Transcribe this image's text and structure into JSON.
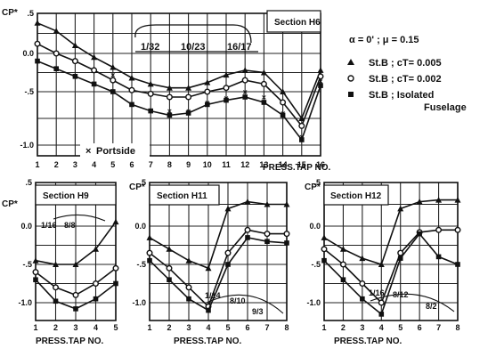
{
  "chart_data": [
    {
      "type": "line",
      "title": "Section H6",
      "xlabel": "PRESS.TAP NO.",
      "ylabel": "CP*",
      "x": [
        1,
        2,
        3,
        4,
        5,
        6,
        7,
        8,
        9,
        10,
        11,
        12,
        13,
        14,
        15,
        16
      ],
      "xlim": [
        1,
        16
      ],
      "ylim": [
        -1.2,
        0.5
      ],
      "yticks": [
        ".5",
        "0.0",
        "-.5",
        "-1.0"
      ],
      "grid": true,
      "annotations": [
        "1/32",
        "10/23",
        "16/17",
        "Portside"
      ],
      "series": [
        {
          "marker": "triangle",
          "values": [
            0.38,
            0.28,
            0.1,
            -0.05,
            -0.18,
            -0.32,
            -0.4,
            -0.45,
            -0.45,
            -0.38,
            -0.28,
            -0.22,
            -0.25,
            -0.5,
            -0.75,
            -0.22
          ]
        },
        {
          "marker": "circle",
          "values": [
            0.12,
            0.0,
            -0.1,
            -0.22,
            -0.35,
            -0.48,
            -0.52,
            -0.55,
            -0.55,
            -0.5,
            -0.45,
            -0.35,
            -0.4,
            -0.6,
            -0.82,
            -0.3
          ]
        },
        {
          "marker": "square",
          "values": [
            -0.1,
            -0.2,
            -0.3,
            -0.4,
            -0.5,
            -0.62,
            -0.68,
            -0.72,
            -0.7,
            -0.62,
            -0.58,
            -0.55,
            -0.6,
            -0.72,
            -0.95,
            -0.42
          ]
        },
        {
          "marker": "cross",
          "values": [
            null,
            null,
            null,
            null,
            -0.28,
            null,
            null,
            -0.68,
            -0.68,
            -0.6,
            -0.56,
            -0.5,
            -0.55,
            -0.7,
            -0.92,
            -0.36
          ]
        }
      ]
    },
    {
      "type": "line",
      "title": "Section H9",
      "xlabel": "PRESS.TAP NO.",
      "ylabel": "CP*",
      "x": [
        1,
        2,
        3,
        4,
        5
      ],
      "xlim": [
        1,
        5
      ],
      "ylim": [
        -1.2,
        0.35
      ],
      "yticks": [
        ".5",
        "0.0",
        "-.5",
        "-1.0"
      ],
      "grid": true,
      "annotations": [
        "1/16",
        "8/8"
      ],
      "series": [
        {
          "marker": "triangle",
          "values": [
            -0.45,
            -0.5,
            -0.5,
            -0.3,
            0.05
          ]
        },
        {
          "marker": "circle",
          "values": [
            -0.6,
            -0.8,
            -0.9,
            -0.75,
            -0.55
          ]
        },
        {
          "marker": "square",
          "values": [
            -0.7,
            -0.98,
            -1.08,
            -0.95,
            -0.75
          ]
        }
      ]
    },
    {
      "type": "line",
      "title": "Section H11",
      "xlabel": "PRESS.TAP NO.",
      "ylabel": "CP*",
      "x": [
        1,
        2,
        3,
        4,
        5,
        6,
        7,
        8
      ],
      "xlim": [
        1,
        8
      ],
      "ylim": [
        -1.2,
        0.35
      ],
      "yticks": [
        ".5",
        "0.0",
        "-.5",
        "-1.0"
      ],
      "grid": true,
      "annotations": [
        "1/14",
        "8/10",
        "9/3"
      ],
      "series": [
        {
          "marker": "triangle",
          "values": [
            -0.15,
            -0.3,
            -0.45,
            -0.55,
            0.2,
            0.28,
            0.25,
            0.25
          ]
        },
        {
          "marker": "circle",
          "values": [
            -0.35,
            -0.55,
            -0.8,
            -1.05,
            -0.35,
            -0.05,
            -0.1,
            -0.1
          ]
        },
        {
          "marker": "square",
          "values": [
            -0.45,
            -0.7,
            -0.95,
            -1.1,
            -0.5,
            -0.15,
            -0.2,
            -0.22
          ]
        }
      ]
    },
    {
      "type": "line",
      "title": "Section H12",
      "xlabel": "PRESS.TAP NO.",
      "ylabel": "CP*",
      "x": [
        1,
        2,
        3,
        4,
        5,
        6,
        7,
        8
      ],
      "xlim": [
        1,
        8
      ],
      "ylim": [
        -1.2,
        0.35
      ],
      "yticks": [
        ".5",
        "0.0",
        "-.5",
        "-1.0"
      ],
      "grid": true,
      "annotations": [
        "1/16",
        "8/12",
        "8/2"
      ],
      "series": [
        {
          "marker": "triangle",
          "values": [
            -0.15,
            -0.3,
            -0.42,
            -0.5,
            0.2,
            0.28,
            0.3,
            0.3
          ]
        },
        {
          "marker": "circle",
          "values": [
            -0.3,
            -0.5,
            -0.75,
            -1.0,
            -0.35,
            -0.08,
            -0.05,
            -0.05
          ]
        },
        {
          "marker": "square",
          "values": [
            -0.45,
            -0.7,
            -0.95,
            -1.15,
            -0.42,
            -0.1,
            -0.4,
            -0.5
          ]
        }
      ]
    }
  ],
  "legend": {
    "condition": "α = 0' ; μ = 0.15",
    "entries": [
      {
        "marker": "triangle",
        "text": "St.B ; cT= 0.005"
      },
      {
        "marker": "circle",
        "text": "St.B ; cT= 0.002"
      },
      {
        "marker": "square",
        "text": "St.B ; Isolated"
      },
      {
        "marker": "none",
        "text": "Fuselage"
      }
    ]
  }
}
